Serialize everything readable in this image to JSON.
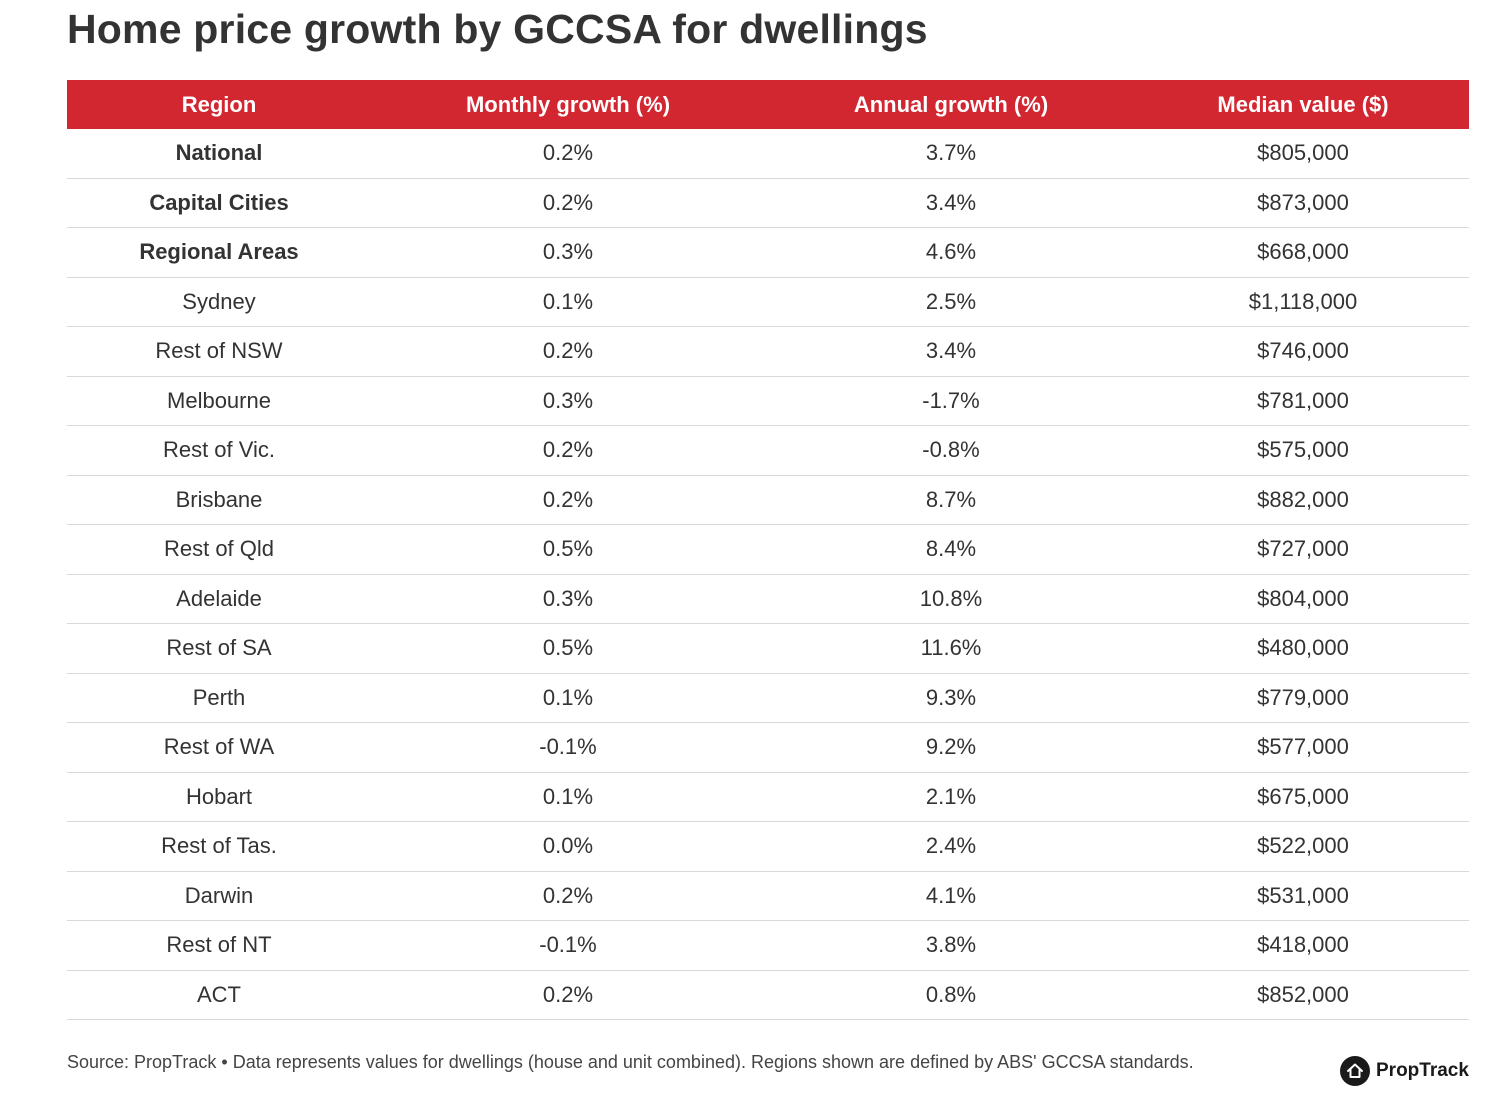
{
  "chart_data": {
    "type": "table",
    "title": "Home price growth by GCCSA for dwellings",
    "columns": [
      "Region",
      "Monthly growth (%)",
      "Annual growth (%)",
      "Median value ($)"
    ],
    "rows": [
      {
        "region": "National",
        "monthly": "0.2%",
        "annual": "3.7%",
        "median": "$805,000",
        "bold": true
      },
      {
        "region": "Capital Cities",
        "monthly": "0.2%",
        "annual": "3.4%",
        "median": "$873,000",
        "bold": true
      },
      {
        "region": "Regional Areas",
        "monthly": "0.3%",
        "annual": "4.6%",
        "median": "$668,000",
        "bold": true
      },
      {
        "region": "Sydney",
        "monthly": "0.1%",
        "annual": "2.5%",
        "median": "$1,118,000",
        "bold": false
      },
      {
        "region": "Rest of NSW",
        "monthly": "0.2%",
        "annual": "3.4%",
        "median": "$746,000",
        "bold": false
      },
      {
        "region": "Melbourne",
        "monthly": "0.3%",
        "annual": "-1.7%",
        "median": "$781,000",
        "bold": false
      },
      {
        "region": "Rest of Vic.",
        "monthly": "0.2%",
        "annual": "-0.8%",
        "median": "$575,000",
        "bold": false
      },
      {
        "region": "Brisbane",
        "monthly": "0.2%",
        "annual": "8.7%",
        "median": "$882,000",
        "bold": false
      },
      {
        "region": "Rest of Qld",
        "monthly": "0.5%",
        "annual": "8.4%",
        "median": "$727,000",
        "bold": false
      },
      {
        "region": "Adelaide",
        "monthly": "0.3%",
        "annual": "10.8%",
        "median": "$804,000",
        "bold": false
      },
      {
        "region": "Rest of SA",
        "monthly": "0.5%",
        "annual": "11.6%",
        "median": "$480,000",
        "bold": false
      },
      {
        "region": "Perth",
        "monthly": "0.1%",
        "annual": "9.3%",
        "median": "$779,000",
        "bold": false
      },
      {
        "region": "Rest of WA",
        "monthly": "-0.1%",
        "annual": "9.2%",
        "median": "$577,000",
        "bold": false
      },
      {
        "region": "Hobart",
        "monthly": "0.1%",
        "annual": "2.1%",
        "median": "$675,000",
        "bold": false
      },
      {
        "region": "Rest of Tas.",
        "monthly": "0.0%",
        "annual": "2.4%",
        "median": "$522,000",
        "bold": false
      },
      {
        "region": "Darwin",
        "monthly": "0.2%",
        "annual": "4.1%",
        "median": "$531,000",
        "bold": false
      },
      {
        "region": "Rest of NT",
        "monthly": "-0.1%",
        "annual": "3.8%",
        "median": "$418,000",
        "bold": false
      },
      {
        "region": "ACT",
        "monthly": "0.2%",
        "annual": "0.8%",
        "median": "$852,000",
        "bold": false
      }
    ],
    "header_color": "#d22630"
  },
  "footer": {
    "source": "Source: PropTrack • Data represents values for dwellings (house and unit combined). Regions shown are defined by ABS' GCCSA standards."
  },
  "brand": {
    "name": "PropTrack",
    "icon": "house-icon"
  }
}
